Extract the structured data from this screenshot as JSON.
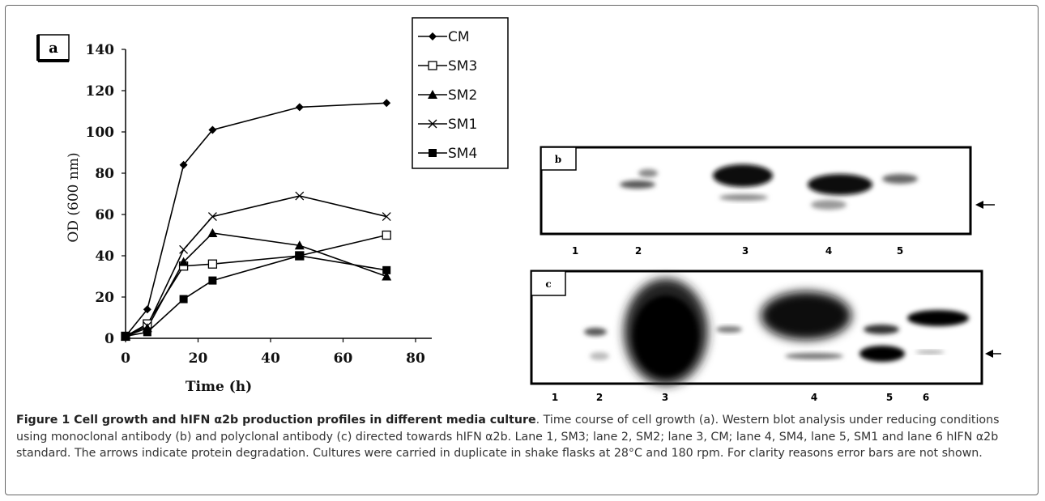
{
  "panel_a": {
    "label": "a",
    "chart_data": {
      "type": "line",
      "xlabel": "Time (h)",
      "ylabel": "OD (600 nm)",
      "xlim": [
        0,
        80
      ],
      "ylim": [
        0,
        140
      ],
      "x_ticks": [
        "0",
        "20",
        "40",
        "60",
        "80"
      ],
      "y_ticks": [
        "0",
        "20",
        "40",
        "60",
        "80",
        "100",
        "120",
        "140"
      ],
      "grid": false,
      "legend_position": "top-right",
      "series": [
        {
          "name": "CM",
          "marker": "diamond",
          "x": [
            0,
            6,
            16,
            24,
            48,
            72
          ],
          "y": [
            1,
            14,
            84,
            101,
            112,
            114
          ]
        },
        {
          "name": "SM3",
          "marker": "open-square",
          "x": [
            0,
            6,
            16,
            24,
            48,
            72
          ],
          "y": [
            1,
            7,
            35,
            36,
            40,
            50
          ]
        },
        {
          "name": "SM2",
          "marker": "filled-triangle",
          "x": [
            0,
            6,
            16,
            24,
            48,
            72
          ],
          "y": [
            1,
            5,
            37,
            51,
            45,
            30
          ]
        },
        {
          "name": "SM1",
          "marker": "x",
          "x": [
            0,
            6,
            16,
            24,
            48,
            72
          ],
          "y": [
            1,
            6,
            43,
            59,
            69,
            59
          ]
        },
        {
          "name": "SM4",
          "marker": "filled-square",
          "x": [
            0,
            6,
            16,
            24,
            48,
            72
          ],
          "y": [
            1,
            3,
            19,
            28,
            40,
            33
          ]
        }
      ]
    }
  },
  "panel_b": {
    "label": "b",
    "lanes": [
      "1",
      "2",
      "3",
      "4",
      "5"
    ]
  },
  "panel_c": {
    "label": "c",
    "lanes": [
      "1",
      "2",
      "3",
      "4",
      "5",
      "6"
    ]
  },
  "caption": {
    "title": "Figure 1 Cell growth and hIFN α2b production profiles in different media culture",
    "text": ". Time course of cell growth (a). Western blot analysis under reducing conditions using monoclonal antibody (b) and polyclonal antibody (c) directed towards hIFN α2b. Lane 1, SM3; lane 2, SM2; lane 3, CM; lane 4, SM4, lane 5, SM1 and lane 6 hIFN α2b standard. The arrows indicate protein degradation. Cultures were carried in duplicate in shake flasks at 28°C and 180 rpm. For clarity reasons error bars are not shown."
  }
}
